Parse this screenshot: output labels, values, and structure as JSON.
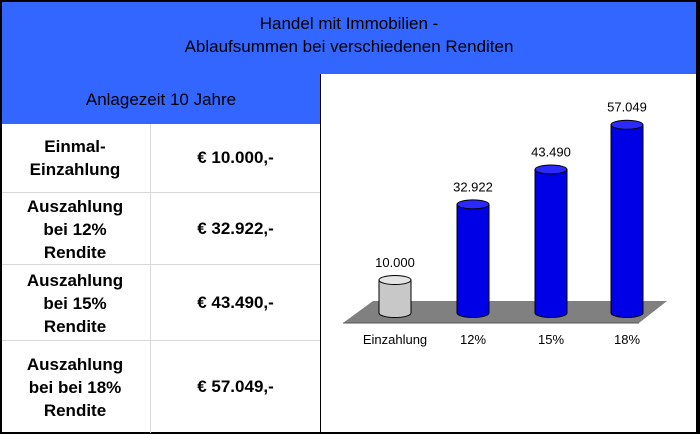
{
  "header": {
    "title_line1": "Handel mit Immobilien -",
    "title_line2": "Ablaufsummen bei verschiedenen Renditen"
  },
  "anlagezeit": "Anlagezeit 10 Jahre",
  "table": {
    "rows": [
      {
        "label_lines": [
          "Einmal-",
          "Einzahlung"
        ],
        "value": "€ 10.000,-"
      },
      {
        "label_lines": [
          "Auszahlung",
          "bei 12%",
          "Rendite"
        ],
        "value": "€ 32.922,-"
      },
      {
        "label_lines": [
          "Auszahlung",
          "bei 15%",
          "Rendite"
        ],
        "value": "€ 43.490,-"
      },
      {
        "label_lines": [
          "Auszahlung",
          "bei bei 18%",
          "Rendite"
        ],
        "value": "€ 57.049,-"
      }
    ]
  },
  "chart_data": {
    "type": "bar",
    "categories": [
      "Einzahlung",
      "12%",
      "15%",
      "18%"
    ],
    "values": [
      10000,
      32922,
      43490,
      57049
    ],
    "data_labels": [
      "10.000",
      "32.922",
      "43.490",
      "57.049"
    ],
    "title": "",
    "xlabel": "",
    "ylabel": "",
    "ylim": [
      0,
      60000
    ],
    "grid": false,
    "legend": "none",
    "style": "3d-cylinder",
    "colors": {
      "base_bar": "#c8c8c8",
      "bars": "#0000e6",
      "floor": "#808080"
    }
  }
}
